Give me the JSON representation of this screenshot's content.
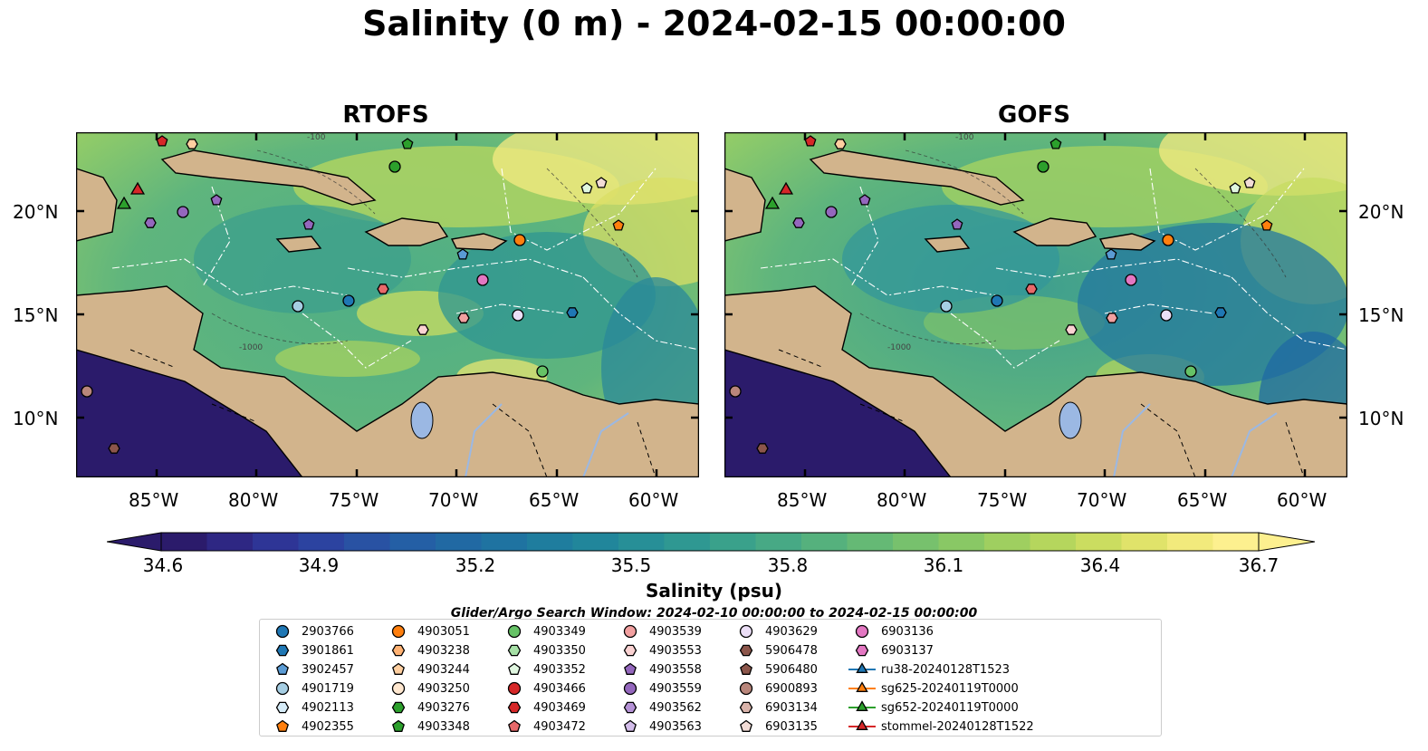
{
  "title": "Salinity (0 m) - 2024-02-15 00:00:00",
  "panels": [
    {
      "title": "RTOFS"
    },
    {
      "title": "GOFS"
    }
  ],
  "lat_labels": [
    "20°N",
    "15°N",
    "10°N"
  ],
  "lon_labels": [
    "85°W",
    "80°W",
    "75°W",
    "70°W",
    "65°W",
    "60°W"
  ],
  "isobath_labels": [
    "-100",
    "-1000"
  ],
  "colorbar": {
    "label": "Salinity (psu)",
    "ticks": [
      "34.6",
      "34.9",
      "35.2",
      "35.5",
      "35.8",
      "36.1",
      "36.4",
      "36.7"
    ],
    "colors": [
      "#2b1b6b",
      "#2e2783",
      "#2e3596",
      "#2c43a0",
      "#2952a3",
      "#245fa5",
      "#2169a3",
      "#1f73a1",
      "#1f7d9e",
      "#21869b",
      "#278f97",
      "#2f9892",
      "#3aa18b",
      "#47a985",
      "#55b17d",
      "#65b975",
      "#77c16d",
      "#89c865",
      "#9fcf60",
      "#b5d65d",
      "#cbdd60",
      "#e0e36a",
      "#f2ea7c",
      "#fdf08f"
    ]
  },
  "search_window": "Glider/Argo Search Window: 2024-02-10 00:00:00 to 2024-02-15 00:00:00",
  "legend": [
    {
      "label": "2903766",
      "marker": "circle",
      "color": "#1f77b4"
    },
    {
      "label": "3901861",
      "marker": "hexagon",
      "color": "#1f77b4"
    },
    {
      "label": "3902457",
      "marker": "pentagon",
      "color": "#5a9bd4"
    },
    {
      "label": "4901719",
      "marker": "circle",
      "color": "#a6cee3"
    },
    {
      "label": "4902113",
      "marker": "hexagon",
      "color": "#d6ecf8"
    },
    {
      "label": "4902355",
      "marker": "pentagon",
      "color": "#ff7f0e"
    },
    {
      "label": "4903051",
      "marker": "circle",
      "color": "#ff7f0e"
    },
    {
      "label": "4903238",
      "marker": "hexagon",
      "color": "#ffb273"
    },
    {
      "label": "4903244",
      "marker": "pentagon",
      "color": "#ffcfa0"
    },
    {
      "label": "4903250",
      "marker": "circle",
      "color": "#ffe7cf"
    },
    {
      "label": "4903276",
      "marker": "hexagon",
      "color": "#2ca02c"
    },
    {
      "label": "4903348",
      "marker": "pentagon",
      "color": "#2ca02c"
    },
    {
      "label": "4903349",
      "marker": "circle",
      "color": "#66c266"
    },
    {
      "label": "4903350",
      "marker": "hexagon",
      "color": "#a6e0a6"
    },
    {
      "label": "4903352",
      "marker": "pentagon",
      "color": "#e0f7e0"
    },
    {
      "label": "4903466",
      "marker": "circle",
      "color": "#d62728"
    },
    {
      "label": "4903469",
      "marker": "hexagon",
      "color": "#d62728"
    },
    {
      "label": "4903472",
      "marker": "pentagon",
      "color": "#e8696a"
    },
    {
      "label": "4903539",
      "marker": "circle",
      "color": "#f2a0a0"
    },
    {
      "label": "4903553",
      "marker": "hexagon",
      "color": "#fad2d2"
    },
    {
      "label": "4903558",
      "marker": "pentagon",
      "color": "#9467bd"
    },
    {
      "label": "4903559",
      "marker": "circle",
      "color": "#9467bd"
    },
    {
      "label": "4903562",
      "marker": "hexagon",
      "color": "#b592d6"
    },
    {
      "label": "4903563",
      "marker": "pentagon",
      "color": "#d3bdea"
    },
    {
      "label": "4903629",
      "marker": "circle",
      "color": "#ecdff7"
    },
    {
      "label": "5906478",
      "marker": "hexagon",
      "color": "#8c564b"
    },
    {
      "label": "5906480",
      "marker": "pentagon",
      "color": "#8c564b"
    },
    {
      "label": "6900893",
      "marker": "circle",
      "color": "#b9867b"
    },
    {
      "label": "6903134",
      "marker": "hexagon",
      "color": "#d9b3aa"
    },
    {
      "label": "6903135",
      "marker": "pentagon",
      "color": "#f2dcd6"
    },
    {
      "label": "6903136",
      "marker": "circle",
      "color": "#e377c2"
    },
    {
      "label": "6903137",
      "marker": "hexagon",
      "color": "#e377c2"
    },
    {
      "label": "ru38-20240128T1523",
      "marker": "triangle",
      "color": "#1f77b4"
    },
    {
      "label": "sg625-20240119T0000",
      "marker": "triangle",
      "color": "#ff7f0e"
    },
    {
      "label": "sg652-20240119T0000",
      "marker": "triangle",
      "color": "#2ca02c"
    },
    {
      "label": "stommel-20240128T1522",
      "marker": "triangle",
      "color": "#d62728"
    }
  ]
}
